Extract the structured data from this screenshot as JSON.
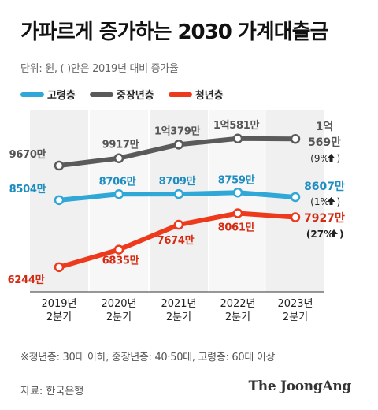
{
  "title": "가파르게 증가하는 2030 가계대출금",
  "subtitle": "단위: 원, ( )안은 2019년 대비 증가율",
  "legend": [
    {
      "label": "고령층",
      "color": "#2fa8d8"
    },
    {
      "label": "중장년층",
      "color": "#5a5a5a"
    },
    {
      "label": "청년층",
      "color": "#ee3a1c"
    }
  ],
  "chart_data": {
    "type": "line",
    "categories": [
      [
        "2019년",
        "2분기"
      ],
      [
        "2020년",
        "2분기"
      ],
      [
        "2021년",
        "2분기"
      ],
      [
        "2022년",
        "2분기"
      ],
      [
        "2023년",
        "2분기"
      ]
    ],
    "series": [
      {
        "name": "중장년층",
        "color": "#5a5a5a",
        "values": [
          96700000,
          99170000,
          103790000,
          105810000,
          105690000
        ],
        "labels": [
          "9670만",
          "9917만",
          "1억379만",
          "1억581만",
          ""
        ],
        "end_label": [
          "1억",
          "569만"
        ],
        "end_change": "(9%",
        "end_change_suffix": ")"
      },
      {
        "name": "고령층",
        "color": "#2fa8d8",
        "values": [
          85040000,
          87060000,
          87090000,
          87590000,
          86070000
        ],
        "labels": [
          "8504만",
          "8706만",
          "8709만",
          "8759만",
          ""
        ],
        "end_label": [
          "8607만"
        ],
        "end_change": "(1%",
        "end_change_suffix": ")"
      },
      {
        "name": "청년층",
        "color": "#ee3a1c",
        "values": [
          62440000,
          68350000,
          76740000,
          80610000,
          79270000
        ],
        "labels": [
          "6244만",
          "6835만",
          "7674만",
          "8061만",
          ""
        ],
        "end_label": [
          "7927만"
        ],
        "end_change": "(27%",
        "end_change_suffix": ")"
      }
    ]
  },
  "note": "※청년층: 30대 이하, 중장년층: 40·50대, 고령층: 60대 이상",
  "source": "자료: 한국은행",
  "logo": "The JoongAng"
}
